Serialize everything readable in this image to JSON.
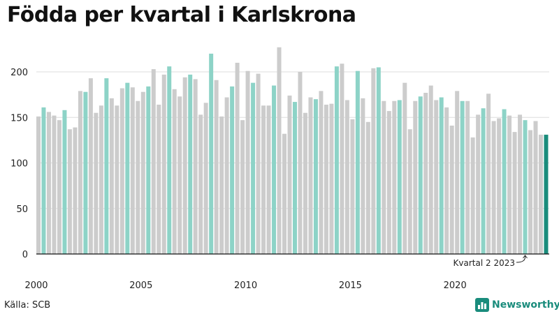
{
  "title": "Födda per kvartal i Karlskrona",
  "source": "Källa: SCB",
  "brand": "Newsworthy",
  "chart_data": {
    "type": "bar",
    "title": "Födda per kvartal i Karlskrona",
    "xlabel": "",
    "ylabel": "",
    "ylim": [
      0,
      230
    ],
    "yticks": [
      0,
      50,
      100,
      150,
      200
    ],
    "xticks": [
      "2000",
      "2005",
      "2010",
      "2015",
      "2020"
    ],
    "grid": true,
    "colors": {
      "other": "#cccccc",
      "q2": "#8dd3c7",
      "latest": "#1a8c7c"
    },
    "annotation": "Kvartal 2 2023",
    "series": [
      {
        "name": "Födda",
        "categories": [
          "2000 Q1",
          "2000 Q2",
          "2000 Q3",
          "2000 Q4",
          "2001 Q1",
          "2001 Q2",
          "2001 Q3",
          "2001 Q4",
          "2002 Q1",
          "2002 Q2",
          "2002 Q3",
          "2002 Q4",
          "2003 Q1",
          "2003 Q2",
          "2003 Q3",
          "2003 Q4",
          "2004 Q1",
          "2004 Q2",
          "2004 Q3",
          "2004 Q4",
          "2005 Q1",
          "2005 Q2",
          "2005 Q3",
          "2005 Q4",
          "2006 Q1",
          "2006 Q2",
          "2006 Q3",
          "2006 Q4",
          "2007 Q1",
          "2007 Q2",
          "2007 Q3",
          "2007 Q4",
          "2008 Q1",
          "2008 Q2",
          "2008 Q3",
          "2008 Q4",
          "2009 Q1",
          "2009 Q2",
          "2009 Q3",
          "2009 Q4",
          "2010 Q1",
          "2010 Q2",
          "2010 Q3",
          "2010 Q4",
          "2011 Q1",
          "2011 Q2",
          "2011 Q3",
          "2011 Q4",
          "2012 Q1",
          "2012 Q2",
          "2012 Q3",
          "2012 Q4",
          "2013 Q1",
          "2013 Q2",
          "2013 Q3",
          "2013 Q4",
          "2014 Q1",
          "2014 Q2",
          "2014 Q3",
          "2014 Q4",
          "2015 Q1",
          "2015 Q2",
          "2015 Q3",
          "2015 Q4",
          "2016 Q1",
          "2016 Q2",
          "2016 Q3",
          "2016 Q4",
          "2017 Q1",
          "2017 Q2",
          "2017 Q3",
          "2017 Q4",
          "2018 Q1",
          "2018 Q2",
          "2018 Q3",
          "2018 Q4",
          "2019 Q1",
          "2019 Q2",
          "2019 Q3",
          "2019 Q4",
          "2020 Q1",
          "2020 Q2",
          "2020 Q3",
          "2020 Q4",
          "2021 Q1",
          "2021 Q2",
          "2021 Q3",
          "2021 Q4",
          "2022 Q1",
          "2022 Q2",
          "2022 Q3",
          "2022 Q4",
          "2023 Q1",
          "2023 Q2",
          "2023 Q3",
          "2023 Q4",
          "2024 Q1",
          "2024 Q2"
        ],
        "values": [
          151,
          161,
          156,
          152,
          147,
          158,
          137,
          139,
          179,
          178,
          193,
          155,
          163,
          193,
          171,
          163,
          182,
          188,
          183,
          168,
          178,
          184,
          203,
          164,
          197,
          206,
          181,
          173,
          194,
          197,
          192,
          153,
          166,
          220,
          191,
          151,
          172,
          184,
          210,
          147,
          201,
          188,
          198,
          163,
          163,
          185,
          227,
          132,
          174,
          167,
          200,
          155,
          172,
          170,
          179,
          164,
          165,
          206,
          209,
          169,
          148,
          201,
          171,
          145,
          204,
          205,
          168,
          157,
          168,
          169,
          188,
          137,
          168,
          173,
          177,
          185,
          169,
          172,
          161,
          141,
          179,
          168,
          168,
          128,
          153,
          160,
          176,
          146,
          149,
          159,
          152,
          134,
          153,
          147,
          136,
          146,
          131,
          131
        ]
      }
    ]
  }
}
